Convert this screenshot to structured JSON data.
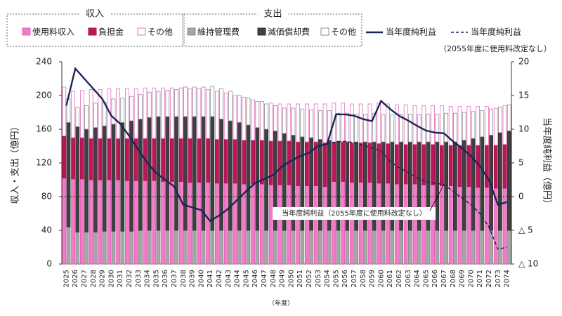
{
  "chart_data": {
    "type": "combo",
    "categories": [
      "2025",
      "2026",
      "2027",
      "2028",
      "2029",
      "2030",
      "2031",
      "2032",
      "2033",
      "2034",
      "2035",
      "2036",
      "2037",
      "2038",
      "2039",
      "2040",
      "2041",
      "2042",
      "2043",
      "2044",
      "2045",
      "2046",
      "2047",
      "2048",
      "2049",
      "2050",
      "2051",
      "2052",
      "2053",
      "2054",
      "2055",
      "2056",
      "2057",
      "2058",
      "2059",
      "2060",
      "2061",
      "2062",
      "2063",
      "2064",
      "2065",
      "2066",
      "2067",
      "2068",
      "2069",
      "2070",
      "2071",
      "2072",
      "2073",
      "2074"
    ],
    "bar_groups": [
      {
        "name": "収入",
        "series": [
          {
            "name": "使用料収入",
            "color": "#f27ac8",
            "edge": "#e45fb5",
            "values": [
              102,
              101,
              101,
              100,
              100,
              100,
              100,
              99,
              99,
              99,
              99,
              98,
              98,
              98,
              97,
              97,
              97,
              96,
              96,
              96,
              95,
              95,
              95,
              94,
              94,
              94,
              93,
              93,
              93,
              92,
              98,
              98,
              97,
              97,
              97,
              96,
              96,
              95,
              95,
              95,
              94,
              94,
              93,
              93,
              92,
              92,
              91,
              91,
              90,
              90
            ]
          },
          {
            "name": "負担金",
            "color": "#c0145c",
            "edge": "#a80f4f",
            "values": [
              50,
              49,
              49,
              49,
              49,
              49,
              49,
              50,
              50,
              50,
              50,
              51,
              51,
              51,
              52,
              52,
              52,
              52,
              52,
              52,
              52,
              52,
              52,
              52,
              52,
              52,
              52,
              52,
              52,
              52,
              47,
              47,
              47,
              47,
              47,
              47,
              47,
              47,
              47,
              47,
              48,
              48,
              48,
              48,
              49,
              49,
              50,
              50,
              51,
              52
            ]
          },
          {
            "name": "その他",
            "color": "#ffffff",
            "edge": "#e86cc0",
            "values": [
              58,
              55,
              56,
              58,
              58,
              59,
              59,
              59,
              59,
              60,
              60,
              60,
              60,
              60,
              59,
              59,
              58,
              57,
              55,
              52,
              51,
              48,
              46,
              45,
              44,
              44,
              45,
              45,
              45,
              46,
              46,
              46,
              46,
              46,
              46,
              48,
              47,
              47,
              47,
              46,
              46,
              46,
              47,
              46,
              46,
              46,
              46,
              46,
              44,
              46
            ]
          }
        ]
      },
      {
        "name": "支出",
        "series": [
          {
            "name": "維持管理費",
            "color": "#a6a6a6",
            "edge": "#8c8c8c",
            "values": [
              44,
              38,
              38,
              38,
              39,
              39,
              39,
              39,
              40,
              40,
              40,
              40,
              40,
              40,
              40,
              40,
              40,
              40,
              40,
              40,
              40,
              40,
              40,
              40,
              40,
              40,
              40,
              40,
              40,
              40,
              40,
              40,
              40,
              40,
              40,
              40,
              40,
              40,
              40,
              40,
              40,
              40,
              40,
              40,
              40,
              40,
              40,
              40,
              40,
              40
            ]
          },
          {
            "name": "減価償却費",
            "color": "#404040",
            "edge": "#303030",
            "values": [
              124,
              125,
              122,
              124,
              125,
              127,
              129,
              131,
              132,
              134,
              135,
              135,
              135,
              135,
              135,
              135,
              135,
              132,
              130,
              128,
              125,
              122,
              120,
              118,
              115,
              113,
              111,
              110,
              108,
              107,
              106,
              105,
              105,
              105,
              105,
              105,
              105,
              105,
              105,
              105,
              105,
              105,
              105,
              105,
              107,
              109,
              111,
              113,
              116,
              118
            ]
          },
          {
            "name": "その他",
            "color": "#ffffff",
            "edge": "#8c8c8c",
            "values": [
              28,
              23,
              28,
              29,
              28,
              30,
              29,
              29,
              29,
              30,
              30,
              31,
              32,
              35,
              35,
              35,
              36,
              36,
              35,
              32,
              32,
              31,
              30,
              30,
              30,
              32,
              33,
              33,
              34,
              35,
              33,
              34,
              33,
              33,
              34,
              32,
              32,
              32,
              33,
              32,
              33,
              33,
              34,
              34,
              33,
              32,
              31,
              31,
              30,
              31
            ]
          }
        ]
      }
    ],
    "series": [
      {
        "name": "当年度純利益",
        "color": "#1b2556",
        "dashed": false,
        "axis": "y2",
        "values": [
          13.5,
          19,
          17.5,
          16,
          14.5,
          12,
          10.8,
          9,
          7,
          5,
          3.5,
          2.5,
          1.5,
          -1.2,
          -1.6,
          -2,
          -3.6,
          -2.8,
          -1.8,
          -0.5,
          0.8,
          2,
          2.6,
          3.2,
          4.5,
          5.3,
          6,
          6.5,
          7.5,
          7.8,
          12.2,
          12.2,
          12,
          11.5,
          11.2,
          14.2,
          13,
          12,
          11.3,
          10.5,
          9.8,
          9.5,
          9.4,
          8.2,
          7.2,
          6,
          4.5,
          2.5,
          -1.2,
          -0.8
        ]
      },
      {
        "name": "当年度純利益",
        "color": "#1b2556",
        "dashed": true,
        "axis": "y2",
        "values": [
          13.5,
          19,
          17.5,
          16,
          14.5,
          12,
          10.8,
          9,
          7,
          5,
          3.5,
          2.5,
          1.5,
          -1.2,
          -1.6,
          -2,
          -3.6,
          -2.8,
          -1.8,
          -0.5,
          0.8,
          2,
          2.6,
          3.2,
          4.5,
          5.3,
          6,
          6.5,
          7.5,
          7.8,
          8.1,
          8.2,
          8,
          7.6,
          7.2,
          6.8,
          5.2,
          4.3,
          3.6,
          2.8,
          2.2,
          2,
          1.8,
          0.8,
          -0.2,
          -1.2,
          -2.5,
          -4.5,
          -7.8,
          -7.5
        ]
      }
    ],
    "legend_note": "（2055年度に使用料改定なし）",
    "annotation": "当年度純利益（2055年度に使用料改定なし）",
    "annotation_target": {
      "category": "2067",
      "value": 1.8
    },
    "ylabel": "収入・支出（億円）",
    "y2label": "当年度純利益（億円）",
    "xlabel": "（年度）",
    "ylim": [
      0,
      240
    ],
    "yticks": [
      0,
      40,
      80,
      120,
      160,
      200,
      240
    ],
    "y2lim": [
      -10,
      20
    ],
    "y2ticks": [
      {
        "value": -10,
        "label": "△ 10"
      },
      {
        "value": -5,
        "label": "△ 5"
      },
      0,
      5,
      10,
      15,
      20
    ],
    "y2_zero_line": true,
    "grid": false
  }
}
